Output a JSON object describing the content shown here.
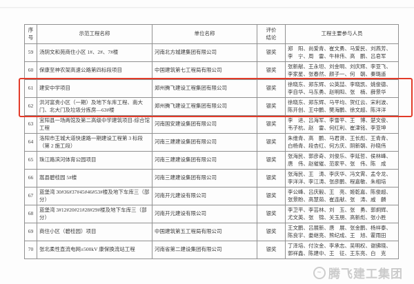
{
  "table": {
    "headers": [
      "序号",
      "示范工程名称",
      "单位名称",
      "评价\n结论",
      "工程主要参与人员"
    ],
    "rows": [
      {
        "no": "59",
        "project": "汤阴文和苑商住小区 1#、2#、7#楼",
        "company": "河南北方城建集团有限公司",
        "result": "银奖",
        "people": "郑　阳、尚爱青、崔文勇、马爱民、刘燕芳、李　宁、周　雷、牛林伟、高　鹏、吕皂军"
      },
      {
        "no": "60",
        "project": "保康至神农架高速公路第四标段项目",
        "company": "中国建筑第七工程局有限公司",
        "result": "银奖",
        "people": "张新献、王永坦、刘金明、刘庆辉、李亚飞、李家星、张春然、颜子一、何　朝、秦璐遥"
      },
      {
        "no": "61",
        "project": "建安中学项目",
        "company": "郑州腾飞建设工程集团有限公司",
        "result": "银奖",
        "people": "徐晓东、郑东辉、公英喆、李晓凯、姚俊德、李自华、马东勇、赵明阳、张　楠、薛景华"
      },
      {
        "no": "62",
        "project": "洪河富贵小区（一期）及地下车库工程、南大门、北大门及垃圾分拣房—63#楼",
        "company": "郑州腾飞建设工程集团有限公司",
        "result": "银奖",
        "people": "徐晓东、郑东辉、马平均、贺红云、宋利波、陈开创、王中鹏、樊海鹏、徐文超、陈洋洋"
      },
      {
        "no": "63",
        "project": "宜阳县一场两馆及第二高级中学建筑项目-综合馆工程",
        "company": "河南国安建设集团有限公司",
        "result": "银奖",
        "people": "李　进、吕海军、李雪平、王　博、楚文俊、韦子杭、赵　雷、何红利、崔津铭、李亚坤"
      },
      {
        "no": "64",
        "project": "洛阳市王城大道快速路一期建设工程第 3 标段（第 2 施工段）",
        "company": "河南三建建设集团有限公司",
        "result": "银奖",
        "people": "朱维青、高　鹏、马君贤、王长彪、王青青、白杨青、段杏红、何方庆、阴新朝、孙晓伟"
      },
      {
        "no": "65",
        "project": "珠江路滨河体育公园项目",
        "company": "河南三建建设集团有限公司",
        "result": "银奖",
        "people": "张海民、郭彦奇、刘俊乐、李延哲、侯林峰、唐　伟、赵催催、范家平、张　伟、陈　成"
      },
      {
        "no": "66",
        "project": "嵩县碧桂园 5#楼",
        "company": "河南三建建设集团有限公司",
        "result": "银奖",
        "people": "张海民、王　涛、李庆华、冯文霄、孟令龙、李洋洋、李江涛、张彦鹏、程嘉敏、朱相培"
      },
      {
        "no": "67",
        "project": "蓝堡湾 30#36#37#45#46#53#楼及地下车库三（部分）",
        "company": "河南开元建设有限公司",
        "result": "银奖",
        "people": "李公峰、吕庆毅、王　亮、姬乾嘉、陈俊超、张景盼、高慧茹、崔连献、张　涛、戚　麟"
      },
      {
        "no": "68",
        "project": "蓝堡湾 3#12#20#21#28#29#楼及地下车库三（部分）",
        "company": "河南开元建设有限公司",
        "result": "银奖",
        "people": "李卫平、李芸林、刘　玉、张　勇、郭炯辉、尤文英、张　锦、关玉朋、高新彪、张小胜"
      },
      {
        "no": "69",
        "project": "商住小区（碧桂园）项目",
        "company": "中国建筑第五工程局有限公司",
        "result": "银奖",
        "people": "王文鹏、吕展新、唐　展、张金鹏、杨祥泰、陈良宇、娄继亮、熊纪成、王　旭、霍雨田"
      },
      {
        "no": "70",
        "project": "张北柔性直流电网±500kV 康保换流站工程",
        "company": "河南省第二建设集团有限公司",
        "result": "银奖",
        "people": "丁泽培、付汝金、李承志、吴明权、谢拂晓、郭祥鑫、陈建中、王　征、王东亮、白　克"
      }
    ]
  },
  "highlight": {
    "from_row": "61",
    "to_row": "62",
    "color": "#e23a28"
  },
  "watermark": {
    "logo": "tengfei-bird-logo",
    "text": "腾飞建工集团"
  }
}
